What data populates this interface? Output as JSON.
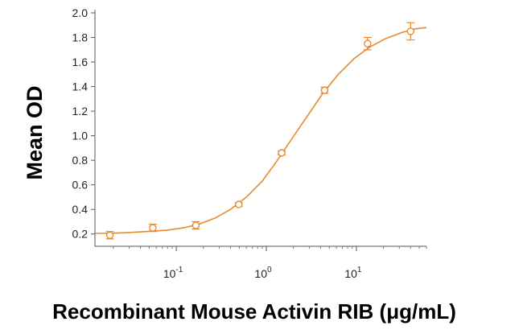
{
  "chart_data": {
    "type": "scatter",
    "xscale": "log",
    "xlabel": "Recombinant Mouse Activin RIB (μg/mL)",
    "ylabel": "Mean OD",
    "xlim": [
      0.0125,
      60
    ],
    "ylim": [
      0.1,
      2.0
    ],
    "yticks": [
      "0.2",
      "0.4",
      "0.6",
      "0.8",
      "1.0",
      "1.2",
      "1.4",
      "1.6",
      "1.8",
      "2.0"
    ],
    "xticks": [
      {
        "base": "10",
        "exp": "-1",
        "value": 0.1
      },
      {
        "base": "10",
        "exp": "0",
        "value": 1
      },
      {
        "base": "10",
        "exp": "1",
        "value": 10
      }
    ],
    "grid": false,
    "color": "#e8892e",
    "series": [
      {
        "x": [
          0.0183,
          0.0549,
          0.165,
          0.494,
          1.48,
          4.44,
          13.3,
          40.0
        ],
        "y": [
          0.19,
          0.25,
          0.27,
          0.44,
          0.86,
          1.37,
          1.75,
          1.85
        ],
        "err": [
          0.03,
          0.03,
          0.03,
          0.015,
          0.015,
          0.025,
          0.05,
          0.07
        ]
      }
    ],
    "curve": {
      "x": [
        0.0125,
        0.02,
        0.03,
        0.05,
        0.08,
        0.12,
        0.18,
        0.27,
        0.4,
        0.6,
        0.9,
        1.3,
        1.9,
        2.8,
        4.2,
        6.3,
        9.5,
        14,
        21,
        32,
        45,
        60
      ],
      "y": [
        0.205,
        0.207,
        0.212,
        0.222,
        0.232,
        0.25,
        0.28,
        0.33,
        0.4,
        0.5,
        0.63,
        0.79,
        0.97,
        1.15,
        1.34,
        1.5,
        1.63,
        1.72,
        1.79,
        1.84,
        1.87,
        1.88
      ]
    }
  }
}
